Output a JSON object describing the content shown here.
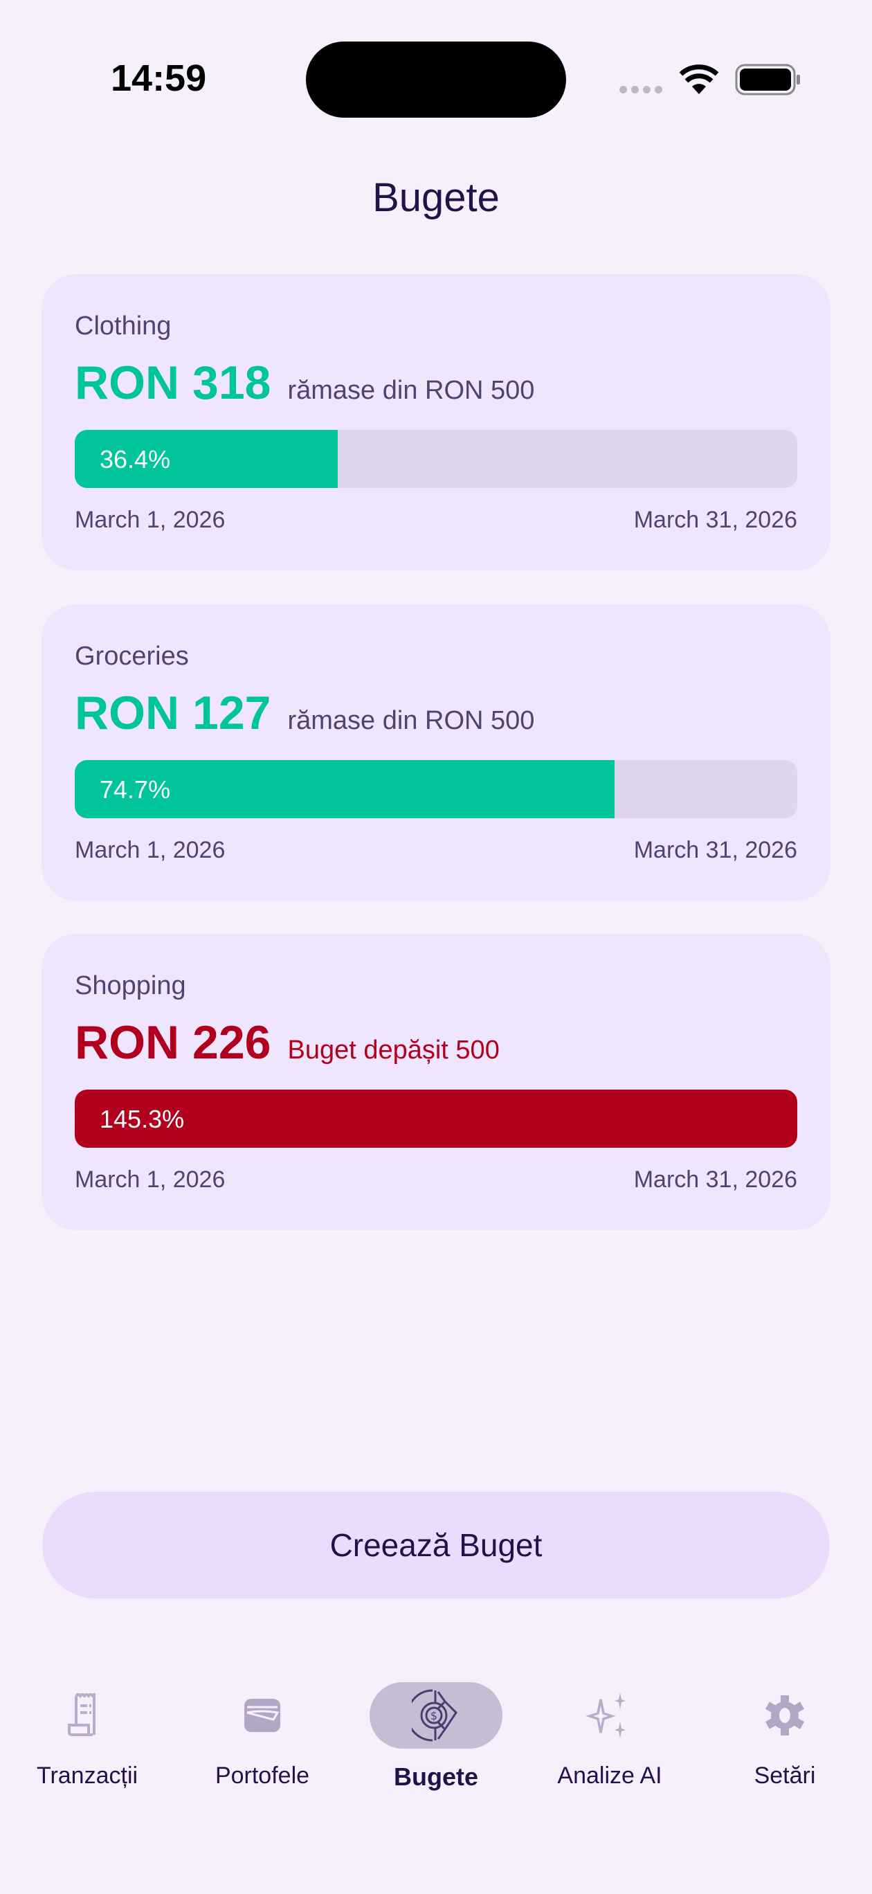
{
  "status_bar": {
    "time": "14:59",
    "icons": [
      "cellular-icon",
      "wifi-icon",
      "battery-icon"
    ]
  },
  "header": {
    "title": "Bugete"
  },
  "colors": {
    "ok": "#00c49a",
    "over": "#b0001e",
    "track": "#ded5ee",
    "card": "#efe6fd"
  },
  "budgets": [
    {
      "category": "Clothing",
      "amount": "RON 318",
      "subtitle": "rămase din RON 500",
      "percent_label": "36.4%",
      "percent": 36.4,
      "status": "ok",
      "start": "March 1, 2026",
      "end": "March 31, 2026"
    },
    {
      "category": "Groceries",
      "amount": "RON 127",
      "subtitle": "rămase din RON 500",
      "percent_label": "74.7%",
      "percent": 74.7,
      "status": "ok",
      "start": "March 1, 2026",
      "end": "March 31, 2026"
    },
    {
      "category": "Shopping",
      "amount": "RON 226",
      "subtitle": "Buget depășit 500",
      "percent_label": "145.3%",
      "percent": 145.3,
      "status": "over",
      "start": "March 1, 2026",
      "end": "March 31, 2026"
    }
  ],
  "create_button": "Creează Buget",
  "tabs": [
    {
      "label": "Tranzacții",
      "icon": "receipt-icon",
      "active": false
    },
    {
      "label": "Portofele",
      "icon": "wallet-icon",
      "active": false
    },
    {
      "label": "Bugete",
      "icon": "budget-chart-icon",
      "active": true
    },
    {
      "label": "Analize AI",
      "icon": "sparkles-icon",
      "active": false
    },
    {
      "label": "Setări",
      "icon": "gear-icon",
      "active": false
    }
  ]
}
